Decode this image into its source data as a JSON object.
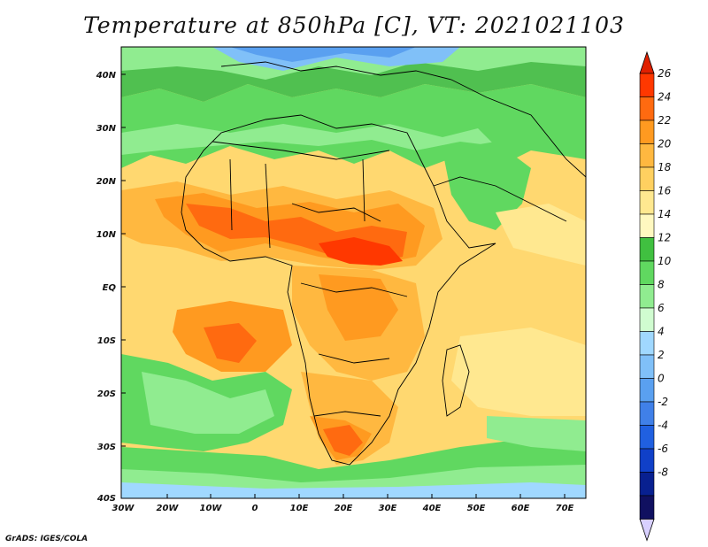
{
  "title": "Temperature at 850hPa [C], VT: 2021021103",
  "credit": "GrADS: IGES/COLA",
  "lat_labels": [
    "40N",
    "30N",
    "20N",
    "10N",
    "EQ",
    "10S",
    "20S",
    "30S",
    "40S"
  ],
  "lon_labels": [
    "30W",
    "20W",
    "10W",
    "0",
    "10E",
    "20E",
    "30E",
    "40E",
    "50E",
    "60E",
    "70E"
  ],
  "colorbar": {
    "labels": [
      "26",
      "24",
      "22",
      "20",
      "18",
      "16",
      "14",
      "12",
      "10",
      "8",
      "6",
      "4",
      "2",
      "0",
      "-2",
      "-4",
      "-6",
      "-8"
    ],
    "colors": [
      "#ff3800",
      "#ff6a10",
      "#ff9a20",
      "#ffb840",
      "#ffd060",
      "#ffe890",
      "#fff8c0",
      "#40c040",
      "#60d860",
      "#90ec90",
      "#d0fcd0",
      "#a0d8ff",
      "#80c0f8",
      "#5aa0f0",
      "#4080e8",
      "#2060e0",
      "#1040c8",
      "#082090",
      "#101060"
    ],
    "top_cap_color": "#e02000",
    "bottom_cap_color": "#d8d0ff"
  }
}
